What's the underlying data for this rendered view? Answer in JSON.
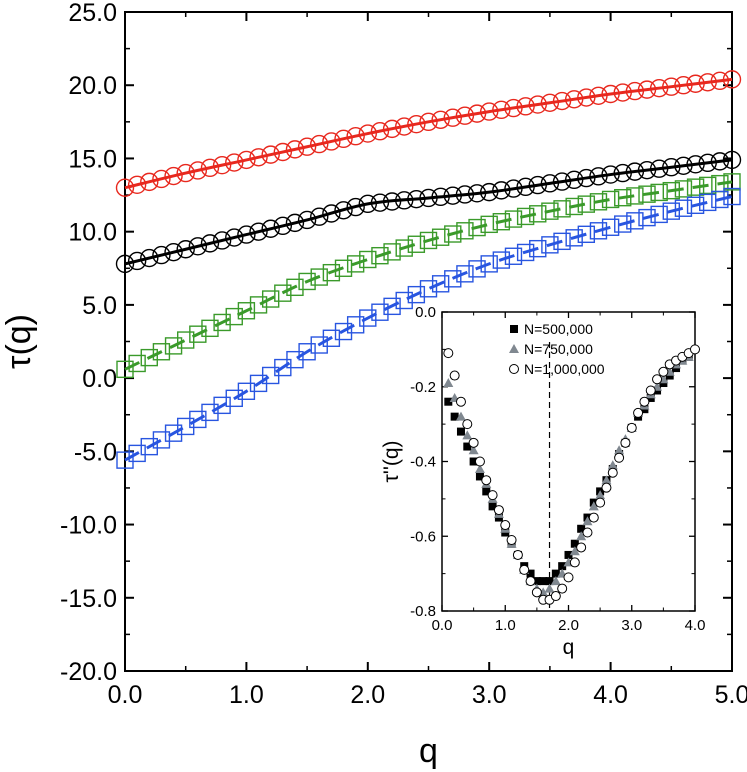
{
  "chart_data": [
    {
      "type": "scatter",
      "xlabel": "q",
      "ylabel": "τ(q)",
      "xlim": [
        0.0,
        5.0
      ],
      "ylim": [
        -20.0,
        25.0
      ],
      "x_ticks": [
        "0.0",
        "1.0",
        "2.0",
        "3.0",
        "4.0",
        "5.0"
      ],
      "y_ticks": [
        "-20.0",
        "-15.0",
        "-10.0",
        "-5.0",
        "0.0",
        "5.0",
        "10.0",
        "15.0",
        "20.0",
        "25.0"
      ],
      "series": [
        {
          "name": "red circles",
          "marker": "circle",
          "color": "#e8281e",
          "fit": "solid",
          "x": [
            0,
            0.5,
            1,
            1.5,
            2,
            2.5,
            3,
            3.5,
            4,
            4.5,
            5
          ],
          "y": [
            13.0,
            14.0,
            14.9,
            15.8,
            16.7,
            17.5,
            18.2,
            18.8,
            19.4,
            19.9,
            20.4
          ]
        },
        {
          "name": "black circles",
          "marker": "circle",
          "color": "#000000",
          "fit": "solid",
          "x": [
            0,
            0.5,
            1,
            1.5,
            2,
            2.5,
            3,
            3.5,
            4,
            4.5,
            5
          ],
          "y": [
            7.8,
            8.8,
            9.8,
            10.8,
            11.9,
            12.3,
            12.7,
            13.3,
            13.9,
            14.4,
            14.9
          ]
        },
        {
          "name": "green squares",
          "marker": "square",
          "color": "#3a9a2a",
          "fit": "dashed",
          "x": [
            0,
            0.5,
            1,
            1.5,
            2,
            2.5,
            3,
            3.5,
            4,
            4.5,
            5
          ],
          "y": [
            0.6,
            2.6,
            4.6,
            6.6,
            8.1,
            9.4,
            10.5,
            11.4,
            12.2,
            12.8,
            13.4
          ]
        },
        {
          "name": "blue squares",
          "marker": "square",
          "color": "#2855e0",
          "fit": "dashed",
          "x": [
            0,
            0.5,
            1,
            1.5,
            2,
            2.5,
            3,
            3.5,
            4,
            4.5,
            5
          ],
          "y": [
            -5.6,
            -3.3,
            -0.9,
            1.8,
            4.1,
            6.1,
            7.8,
            9.1,
            10.3,
            11.4,
            12.4
          ]
        }
      ]
    },
    {
      "type": "scatter",
      "xlabel": "q",
      "ylabel": "τ''(q)",
      "xlim": [
        0.0,
        4.0
      ],
      "ylim": [
        -0.8,
        0.0
      ],
      "x_ticks": [
        "0.0",
        "1.0",
        "2.0",
        "3.0",
        "4.0"
      ],
      "y_ticks": [
        "0.0",
        "-0.2",
        "-0.4",
        "-0.6",
        "-0.8"
      ],
      "vline_x": 1.7,
      "legend": [
        "N=500,000",
        "N=750,000",
        "N=1,000,000"
      ],
      "series": [
        {
          "name": "N=500,000",
          "marker": "filled-square",
          "color": "#000000",
          "x": [
            0.1,
            0.2,
            0.3,
            0.4,
            0.5,
            0.6,
            0.7,
            0.8,
            0.9,
            1.0,
            1.1,
            1.2,
            1.3,
            1.4,
            1.5,
            1.6,
            1.7,
            1.8,
            1.9,
            2.0,
            2.1,
            2.2,
            2.3,
            2.4,
            2.5,
            2.6,
            2.7,
            2.8,
            2.9,
            3.0,
            3.1,
            3.2,
            3.3,
            3.4,
            3.5,
            3.6,
            3.7,
            3.8,
            3.9
          ],
          "y": [
            -0.24,
            -0.28,
            -0.32,
            -0.36,
            -0.4,
            -0.44,
            -0.48,
            -0.52,
            -0.55,
            -0.59,
            -0.62,
            -0.65,
            -0.68,
            -0.7,
            -0.72,
            -0.72,
            -0.72,
            -0.7,
            -0.68,
            -0.65,
            -0.62,
            -0.58,
            -0.55,
            -0.51,
            -0.48,
            -0.45,
            -0.42,
            -0.38,
            -0.35,
            -0.31,
            -0.28,
            -0.26,
            -0.23,
            -0.21,
            -0.19,
            -0.17,
            -0.15,
            -0.13,
            -0.12
          ]
        },
        {
          "name": "N=750,000",
          "marker": "filled-triangle",
          "color": "#808890",
          "x": [
            0.1,
            0.2,
            0.3,
            0.4,
            0.5,
            0.6,
            0.7,
            0.8,
            0.9,
            1.0,
            1.1,
            1.2,
            1.3,
            1.4,
            1.5,
            1.6,
            1.7,
            1.8,
            1.9,
            2.0,
            2.1,
            2.2,
            2.3,
            2.4,
            2.5,
            2.6,
            2.7,
            2.8,
            2.9,
            3.0,
            3.1,
            3.2,
            3.3,
            3.4,
            3.5,
            3.6,
            3.7,
            3.8,
            3.9
          ],
          "y": [
            -0.19,
            -0.23,
            -0.28,
            -0.33,
            -0.37,
            -0.42,
            -0.46,
            -0.5,
            -0.54,
            -0.58,
            -0.62,
            -0.65,
            -0.69,
            -0.72,
            -0.74,
            -0.75,
            -0.74,
            -0.72,
            -0.7,
            -0.67,
            -0.64,
            -0.6,
            -0.56,
            -0.52,
            -0.49,
            -0.45,
            -0.41,
            -0.37,
            -0.34,
            -0.31,
            -0.27,
            -0.25,
            -0.22,
            -0.2,
            -0.18,
            -0.16,
            -0.14,
            -0.13,
            -0.12
          ]
        },
        {
          "name": "N=1,000,000",
          "marker": "open-circle",
          "color": "#000000",
          "x": [
            0.1,
            0.2,
            0.3,
            0.4,
            0.5,
            0.6,
            0.7,
            0.8,
            0.9,
            1.0,
            1.1,
            1.2,
            1.3,
            1.4,
            1.5,
            1.6,
            1.7,
            1.8,
            1.9,
            2.0,
            2.1,
            2.2,
            2.3,
            2.4,
            2.5,
            2.6,
            2.7,
            2.8,
            2.9,
            3.0,
            3.1,
            3.2,
            3.3,
            3.4,
            3.5,
            3.6,
            3.7,
            3.8,
            3.9,
            4.0
          ],
          "y": [
            -0.11,
            -0.17,
            -0.24,
            -0.3,
            -0.35,
            -0.4,
            -0.45,
            -0.49,
            -0.53,
            -0.57,
            -0.61,
            -0.65,
            -0.69,
            -0.72,
            -0.75,
            -0.77,
            -0.77,
            -0.76,
            -0.74,
            -0.71,
            -0.67,
            -0.63,
            -0.59,
            -0.55,
            -0.51,
            -0.47,
            -0.43,
            -0.39,
            -0.35,
            -0.31,
            -0.27,
            -0.24,
            -0.21,
            -0.18,
            -0.16,
            -0.14,
            -0.13,
            -0.12,
            -0.11,
            -0.1
          ]
        }
      ]
    }
  ]
}
